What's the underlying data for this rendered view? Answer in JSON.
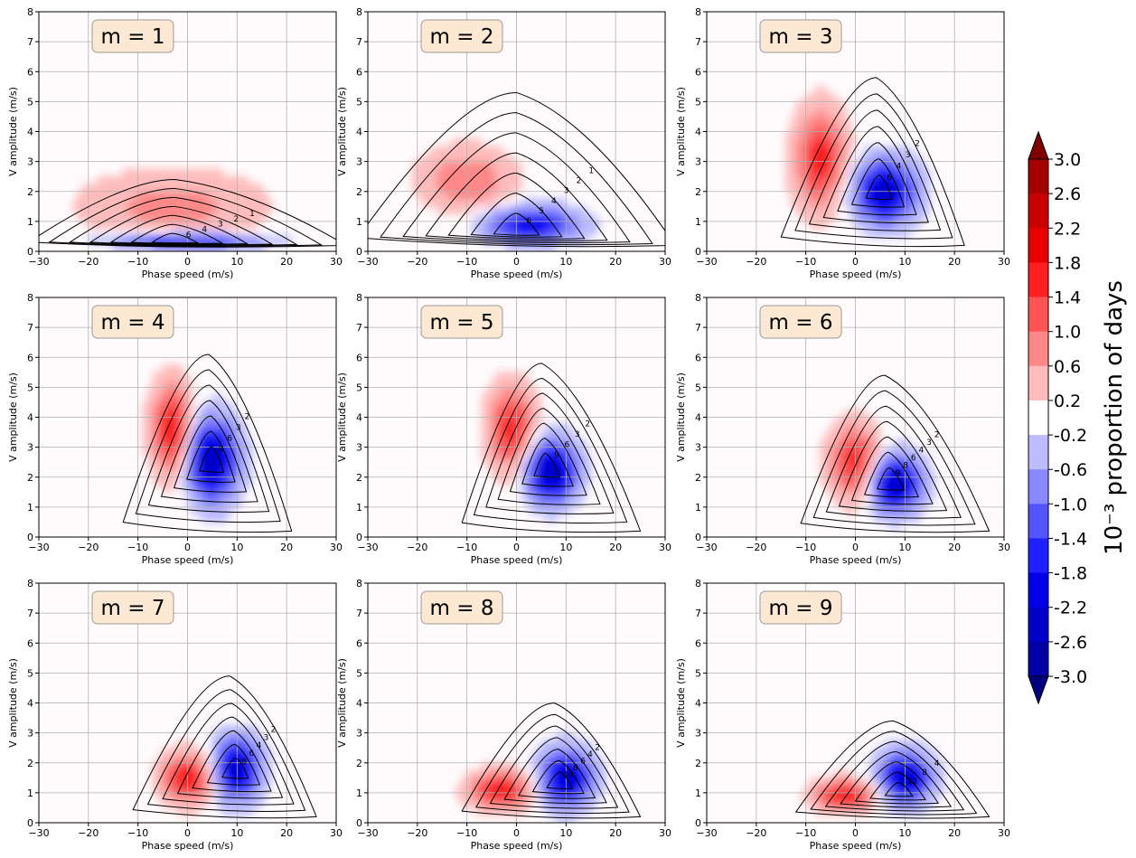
{
  "chart_data": {
    "type": "contour",
    "xlabel": "Phase speed (m/s)",
    "ylabel": "V amplitude (m/s)",
    "xlim": [
      -30,
      30
    ],
    "ylim": [
      0,
      8
    ],
    "xticks": [
      -30,
      -20,
      -10,
      0,
      10,
      20,
      30
    ],
    "yticks": [
      0,
      1,
      2,
      3,
      4,
      5,
      6,
      7,
      8
    ],
    "grid": true,
    "colorbar": {
      "label": "10⁻³ proportion of days",
      "ticks": [
        "3.0",
        "2.6",
        "2.2",
        "1.8",
        "1.4",
        "1.0",
        "0.6",
        "0.2",
        "-0.2",
        "-0.6",
        "-1.0",
        "-1.4",
        "-1.8",
        "-2.2",
        "-2.6",
        "-3.0"
      ],
      "colors_top_to_bottom": [
        "#7f0000",
        "#a40000",
        "#c80000",
        "#e80000",
        "#ff1f1f",
        "#ff5454",
        "#ff8888",
        "#ffbcbc",
        "#ffffff",
        "#bcbcff",
        "#8888ff",
        "#5454ff",
        "#1f1fff",
        "#0000e8",
        "#0000c8",
        "#0000a4",
        "#00007f"
      ]
    },
    "panels": [
      {
        "label": "m = 1",
        "red_blob": {
          "cx": -3,
          "cy": 1.5,
          "sx": 17,
          "sy": 1.1,
          "peak": 0.8
        },
        "blue_blob": {
          "cx": 0,
          "cy": 0.35,
          "sx": 14,
          "sy": 0.25,
          "peak": 2.2
        },
        "contour_center": {
          "x": -3,
          "y": 0.3
        },
        "contour_top": 2.4,
        "contour_left": -32,
        "contour_right": 32,
        "contour_labels": [
          "1",
          "2",
          "3",
          "4",
          "6"
        ]
      },
      {
        "label": "m = 2",
        "red_blob": {
          "cx": -10,
          "cy": 2.4,
          "sx": 9,
          "sy": 1.0,
          "peak": 1.0
        },
        "blue_blob": {
          "cx": 3,
          "cy": 0.9,
          "sx": 9,
          "sy": 0.55,
          "peak": 2.0
        },
        "contour_center": {
          "x": 0,
          "y": 0.6
        },
        "contour_top": 5.3,
        "contour_left": -32,
        "contour_right": 32,
        "contour_labels": [
          "1",
          "2",
          "3",
          "4",
          "5",
          "6"
        ]
      },
      {
        "label": "m = 3",
        "red_blob": {
          "cx": -7,
          "cy": 3.1,
          "sx": 5,
          "sy": 1.6,
          "peak": 1.6
        },
        "blue_blob": {
          "cx": 6,
          "cy": 2.0,
          "sx": 6,
          "sy": 1.0,
          "peak": 2.4
        },
        "contour_center": {
          "x": 5,
          "y": 2.0
        },
        "contour_top": 5.8,
        "contour_left": -15,
        "contour_right": 22,
        "contour_labels": [
          "2",
          "3",
          "4",
          "6"
        ]
      },
      {
        "label": "m = 4",
        "red_blob": {
          "cx": -3,
          "cy": 3.6,
          "sx": 4,
          "sy": 1.5,
          "peak": 1.8
        },
        "blue_blob": {
          "cx": 5,
          "cy": 2.6,
          "sx": 5,
          "sy": 1.3,
          "peak": 2.6
        },
        "contour_center": {
          "x": 5,
          "y": 2.5
        },
        "contour_top": 6.1,
        "contour_left": -13,
        "contour_right": 21,
        "contour_labels": [
          "2",
          "3",
          "6",
          "8"
        ]
      },
      {
        "label": "m = 5",
        "red_blob": {
          "cx": -1,
          "cy": 3.6,
          "sx": 4.5,
          "sy": 1.4,
          "peak": 1.6
        },
        "blue_blob": {
          "cx": 7,
          "cy": 2.2,
          "sx": 5,
          "sy": 1.0,
          "peak": 2.6
        },
        "contour_center": {
          "x": 6,
          "y": 2.3
        },
        "contour_top": 5.8,
        "contour_left": -11,
        "contour_right": 25,
        "contour_labels": [
          "2",
          "3",
          "6",
          "9"
        ]
      },
      {
        "label": "m = 6",
        "red_blob": {
          "cx": 0,
          "cy": 2.5,
          "sx": 5,
          "sy": 1.2,
          "peak": 1.6
        },
        "blue_blob": {
          "cx": 8,
          "cy": 1.8,
          "sx": 5,
          "sy": 0.9,
          "peak": 2.6
        },
        "contour_center": {
          "x": 7,
          "y": 1.8
        },
        "contour_top": 5.4,
        "contour_left": -11,
        "contour_right": 27,
        "contour_labels": [
          "2",
          "3",
          "4",
          "6",
          "8",
          "9"
        ]
      },
      {
        "label": "m = 7",
        "red_blob": {
          "cx": 0,
          "cy": 1.5,
          "sx": 5,
          "sy": 0.8,
          "peak": 1.8
        },
        "blue_blob": {
          "cx": 10,
          "cy": 1.8,
          "sx": 4.5,
          "sy": 1.0,
          "peak": 2.4
        },
        "contour_center": {
          "x": 10,
          "y": 1.7
        },
        "contour_top": 4.9,
        "contour_left": -11,
        "contour_right": 26,
        "contour_labels": [
          "2",
          "3",
          "4",
          "6",
          "8"
        ]
      },
      {
        "label": "m = 8",
        "red_blob": {
          "cx": -3,
          "cy": 1.1,
          "sx": 6,
          "sy": 0.6,
          "peak": 1.8
        },
        "blue_blob": {
          "cx": 10,
          "cy": 1.5,
          "sx": 5,
          "sy": 0.9,
          "peak": 2.4
        },
        "contour_center": {
          "x": 9,
          "y": 1.3
        },
        "contour_top": 4.0,
        "contour_left": -11,
        "contour_right": 25,
        "contour_labels": [
          "2",
          "4",
          "6",
          "8",
          "10"
        ]
      },
      {
        "label": "m = 9",
        "red_blob": {
          "cx": -2,
          "cy": 0.9,
          "sx": 6,
          "sy": 0.5,
          "peak": 1.8
        },
        "blue_blob": {
          "cx": 10,
          "cy": 1.5,
          "sx": 5,
          "sy": 0.8,
          "peak": 2.4
        },
        "contour_center": {
          "x": 9,
          "y": 1.0
        },
        "contour_top": 3.4,
        "contour_left": -12,
        "contour_right": 27,
        "contour_labels": [
          "4",
          "8",
          "12"
        ]
      }
    ]
  }
}
